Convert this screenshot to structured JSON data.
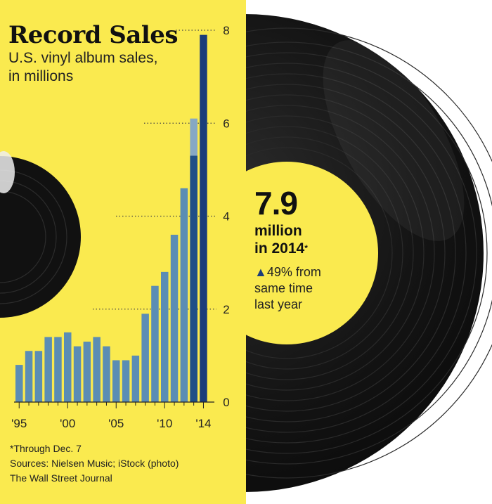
{
  "chart_data": {
    "type": "bar",
    "title": "Record Sales",
    "subtitle_lines": [
      "U.S. vinyl album sales,",
      "in millions"
    ],
    "x": [
      1995,
      1996,
      1997,
      1998,
      1999,
      2000,
      2001,
      2002,
      2003,
      2004,
      2005,
      2006,
      2007,
      2008,
      2009,
      2010,
      2011,
      2012,
      2013,
      2014
    ],
    "values": [
      0.8,
      1.1,
      1.1,
      1.4,
      1.4,
      1.5,
      1.2,
      1.3,
      1.4,
      1.2,
      0.9,
      0.9,
      1.0,
      1.9,
      2.5,
      2.8,
      3.6,
      4.6,
      6.1,
      7.9
    ],
    "highlight": {
      "x": 2013,
      "value_through_dec7": 5.3
    },
    "x_tick_labels": [
      {
        "year": 1995,
        "label": "'95"
      },
      {
        "year": 2000,
        "label": "'00"
      },
      {
        "year": 2005,
        "label": "'05"
      },
      {
        "year": 2010,
        "label": "'10"
      },
      {
        "year": 2014,
        "label": "'14"
      }
    ],
    "y_ticks": [
      0,
      2,
      4,
      6,
      8
    ],
    "ylim": [
      0,
      8
    ],
    "grid": "dotted leader lines at y ticks",
    "colors": {
      "bar": "#5b8db4",
      "bar_2014": "#1b3d7a",
      "bar_2013_prior": "#86a8c4",
      "bar_2013_through": "#1f4f87",
      "background_left": "#faea4f",
      "record": "#141414",
      "label_center": "#faea4f"
    }
  },
  "callout": {
    "value": "7.9",
    "unit_lines": [
      "million",
      "in 2014"
    ],
    "asterisk": "*",
    "arrow": "▲",
    "change_lines": [
      "49% from",
      "same time",
      "last year"
    ]
  },
  "notes": {
    "footnote": "*Through Dec. 7",
    "sources": "Sources: Nielsen Music; iStock (photo)",
    "credit": "The Wall Street Journal"
  }
}
